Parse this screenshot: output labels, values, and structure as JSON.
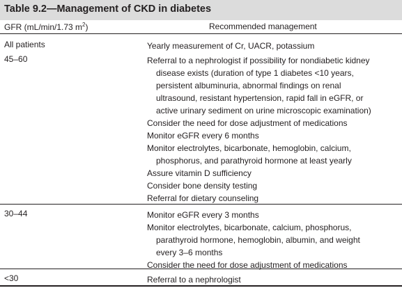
{
  "table": {
    "title": "Table 9.2—Management of CKD in diabetes",
    "header_gfr": "GFR (mL/min/1.73 m",
    "header_gfr_sup": "2",
    "header_gfr_end": ")",
    "header_mgmt": "Recommended management"
  },
  "rows": [
    {
      "label": "All patients",
      "items": [
        [
          "Yearly measurement of Cr, UACR, potassium"
        ]
      ]
    },
    {
      "label": "45–60",
      "items": [
        [
          "Referral to a nephrologist if possibility for nondiabetic kidney",
          "disease exists (duration of type 1 diabetes <10 years,",
          "persistent albuminuria, abnormal findings on renal",
          "ultrasound, resistant hypertension, rapid fall in eGFR, or",
          "active urinary sediment on urine microscopic examination)"
        ],
        [
          "Consider the need for dose adjustment of medications"
        ],
        [
          "Monitor eGFR every 6 months"
        ],
        [
          "Monitor electrolytes, bicarbonate, hemoglobin, calcium,",
          "phosphorus, and parathyroid hormone at least yearly"
        ],
        [
          "Assure vitamin D sufficiency"
        ],
        [
          "Consider bone density testing"
        ],
        [
          "Referral for dietary counseling"
        ]
      ]
    },
    {
      "label": "30–44",
      "items": [
        [
          "Monitor eGFR every 3 months"
        ],
        [
          "Monitor electrolytes, bicarbonate, calcium, phosphorus,",
          "parathyroid hormone, hemoglobin, albumin, and weight",
          "every 3–6 months"
        ],
        [
          "Consider the need for dose adjustment of medications"
        ]
      ]
    },
    {
      "label": "<30",
      "items": [
        [
          "Referral to a nephrologist"
        ]
      ]
    }
  ]
}
